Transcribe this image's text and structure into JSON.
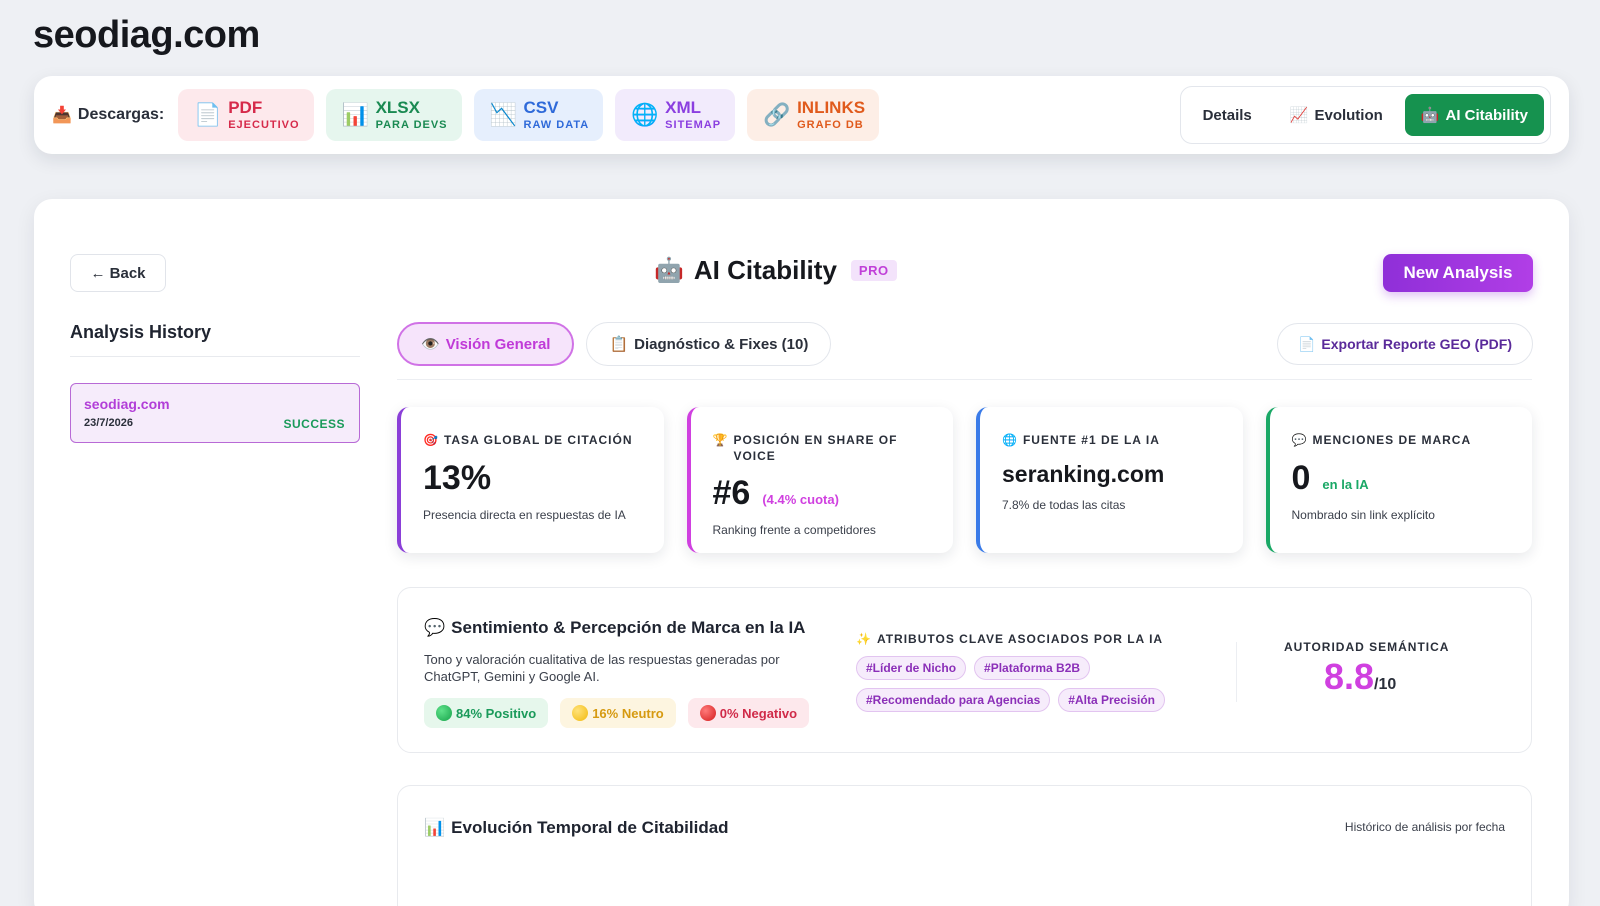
{
  "site_title": "seodiag.com",
  "downloads": {
    "label": "Descargas:",
    "label_icon": "inbox-tray-icon",
    "buttons": [
      {
        "main": "PDF",
        "sub": "EJECUTIVO",
        "icon": "document-icon"
      },
      {
        "main": "XLSX",
        "sub": "PARA DEVS",
        "icon": "bar-chart-icon"
      },
      {
        "main": "CSV",
        "sub": "RAW DATA",
        "icon": "chart-down-icon"
      },
      {
        "main": "XML",
        "sub": "SITEMAP",
        "icon": "globe-icon"
      },
      {
        "main": "INLINKS",
        "sub": "GRAFO DB",
        "icon": "link-icon"
      }
    ]
  },
  "view_tabs": {
    "details": "Details",
    "evolution": "Evolution",
    "ai_citability": "AI Citability"
  },
  "header": {
    "back": "← Back",
    "title": "AI Citability",
    "badge": "PRO",
    "new_analysis": "New Analysis"
  },
  "history": {
    "title": "Analysis History",
    "items": [
      {
        "domain": "seodiag.com",
        "date": "23/7/2026",
        "status": "SUCCESS"
      }
    ]
  },
  "tabs": {
    "overview": "Visión General",
    "diagnostics": "Diagnóstico & Fixes (10)",
    "export": "Exportar Reporte GEO (PDF)"
  },
  "kpis": [
    {
      "label": "TASA GLOBAL DE CITACIÓN",
      "value": "13%",
      "inline": "",
      "desc": "Presencia directa en respuestas de IA",
      "icon": "target-icon"
    },
    {
      "label": "POSICIÓN EN SHARE OF VOICE",
      "value": "#6",
      "inline": "(4.4% cuota)",
      "desc": "Ranking frente a competidores",
      "icon": "trophy-icon"
    },
    {
      "label": "FUENTE #1 DE LA IA",
      "value": "seranking.com",
      "inline": "",
      "desc": "7.8% de todas las citas",
      "icon": "globe-icon"
    },
    {
      "label": "MENCIONES DE MARCA",
      "value": "0",
      "inline": "en la IA",
      "desc": "Nombrado sin link explícito",
      "icon": "speech-bubble-icon"
    }
  ],
  "sentiment": {
    "title": "Sentimiento & Percepción de Marca en la IA",
    "desc": "Tono y valoración cualitativa de las respuestas generadas por ChatGPT, Gemini y Google AI.",
    "positive": "84% Positivo",
    "neutral": "16% Neutro",
    "negative": "0% Negativo",
    "attributes_title": "ATRIBUTOS CLAVE ASOCIADOS POR LA IA",
    "attributes": [
      "#Líder de Nicho",
      "#Plataforma B2B",
      "#Recomendado para Agencias",
      "#Alta Precisión"
    ],
    "authority_title": "AUTORIDAD SEMÁNTICA",
    "authority_value": "8.8",
    "authority_max": "/10"
  },
  "evolution": {
    "title": "Evolución Temporal de Citabilidad",
    "note": "Histórico de análisis por fecha"
  },
  "colors": {
    "accent_green": "#16924f",
    "accent_purple": "#8f2fd8",
    "accent_pink": "#d040e0"
  }
}
